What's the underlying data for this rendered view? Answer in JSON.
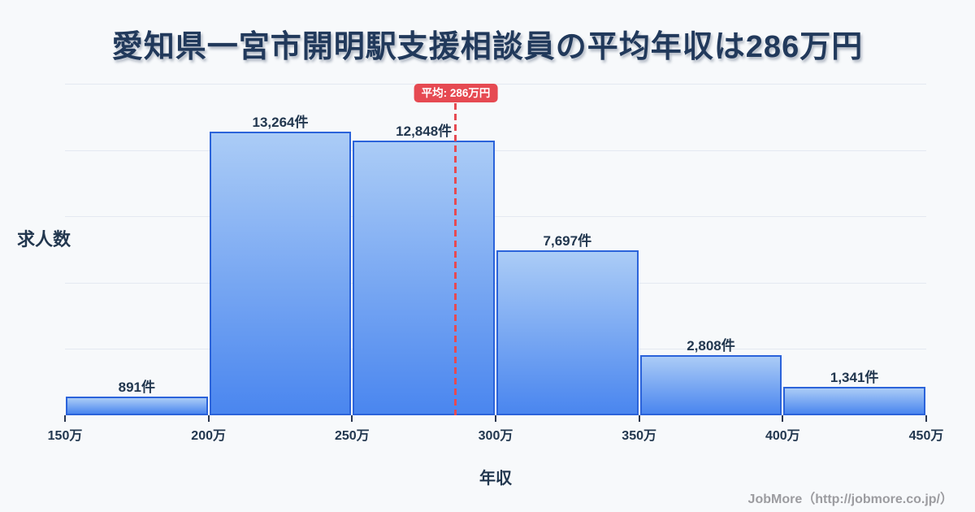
{
  "title": "愛知県一宮市開明駅支援相談員の平均年収は286万円",
  "chart_data": {
    "type": "bar",
    "title": "愛知県一宮市開明駅支援相談員の平均年収は286万円",
    "xlabel": "年収",
    "ylabel": "求人数",
    "x_tick_labels": [
      "150万",
      "200万",
      "250万",
      "300万",
      "350万",
      "400万",
      "450万"
    ],
    "x_range_man_yen": [
      150,
      450
    ],
    "bin_width_man_yen": 50,
    "bins": [
      {
        "range": "150万-200万",
        "count": 891,
        "label": "891件"
      },
      {
        "range": "200万-250万",
        "count": 13264,
        "label": "13,264件"
      },
      {
        "range": "250万-300万",
        "count": 12848,
        "label": "12,848件"
      },
      {
        "range": "300万-350万",
        "count": 7697,
        "label": "7,697件"
      },
      {
        "range": "350万-400万",
        "count": 2808,
        "label": "2,808件"
      },
      {
        "range": "400万-450万",
        "count": 1341,
        "label": "1,341件"
      }
    ],
    "average_line": {
      "value_man_yen": 286,
      "badge_label": "平均: 286万円"
    },
    "legend": "none",
    "grid": "horizontal"
  },
  "axis": {
    "ylabel": "求人数",
    "xlabel": "年収"
  },
  "footer": {
    "credit": "JobMore（http://jobmore.co.jp/）"
  },
  "colors": {
    "background": "#f7f9fb",
    "bar_fill_top": "#abccf6",
    "bar_fill_bottom": "#4a86ef",
    "bar_border": "#2b63da",
    "average_red": "#e64a52",
    "text_navy": "#22374f",
    "grid_line": "#e4e9f1",
    "footer_gray": "#9c9ca0"
  }
}
